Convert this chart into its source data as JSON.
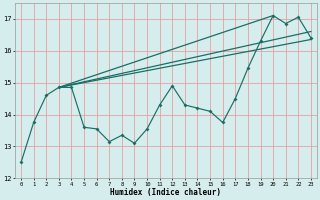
{
  "x": [
    0,
    1,
    2,
    3,
    4,
    5,
    6,
    7,
    8,
    9,
    10,
    11,
    12,
    13,
    14,
    15,
    16,
    17,
    18,
    19,
    20,
    21,
    22,
    23
  ],
  "line_zigzag": [
    12.5,
    13.75,
    14.6,
    14.85,
    14.85,
    13.6,
    13.55,
    13.15,
    13.35,
    13.1,
    13.55,
    14.3,
    14.9,
    14.3,
    14.2,
    14.1,
    13.75,
    14.5,
    15.45,
    16.3,
    17.1,
    16.85,
    17.05,
    16.4
  ],
  "trend1_x": [
    3,
    23
  ],
  "trend1_y": [
    14.85,
    16.35
  ],
  "trend2_x": [
    3,
    23
  ],
  "trend2_y": [
    14.85,
    16.6
  ],
  "trend3_x": [
    3,
    20
  ],
  "trend3_y": [
    14.85,
    17.1
  ],
  "bg_color": "#d5eeed",
  "line_color": "#1a6e66",
  "grid_color": "#e8a0a0",
  "xlabel": "Humidex (Indice chaleur)",
  "ylim": [
    12,
    17.5
  ],
  "xlim": [
    -0.5,
    23.5
  ],
  "yticks": [
    12,
    13,
    14,
    15,
    16,
    17
  ],
  "xticks": [
    0,
    1,
    2,
    3,
    4,
    5,
    6,
    7,
    8,
    9,
    10,
    11,
    12,
    13,
    14,
    15,
    16,
    17,
    18,
    19,
    20,
    21,
    22,
    23
  ]
}
